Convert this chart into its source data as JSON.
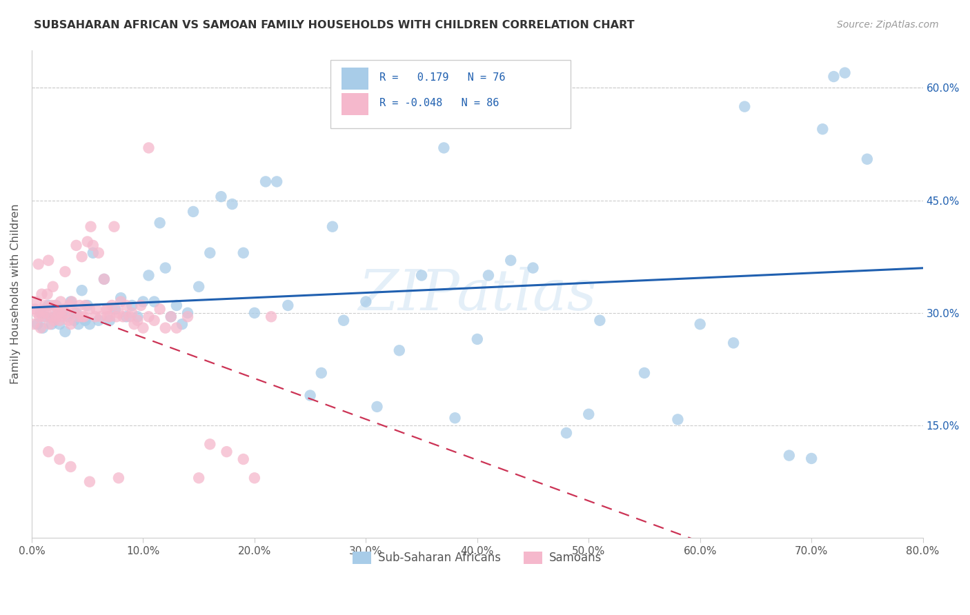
{
  "title": "SUBSAHARAN AFRICAN VS SAMOAN FAMILY HOUSEHOLDS WITH CHILDREN CORRELATION CHART",
  "source": "Source: ZipAtlas.com",
  "ylabel": "Family Households with Children",
  "xlim": [
    0.0,
    0.8
  ],
  "ylim": [
    0.0,
    0.65
  ],
  "ytick_values": [
    0.15,
    0.3,
    0.45,
    0.6
  ],
  "xtick_values": [
    0.0,
    0.1,
    0.2,
    0.3,
    0.4,
    0.5,
    0.6,
    0.7,
    0.8
  ],
  "legend_label1": "Sub-Saharan Africans",
  "legend_label2": "Samoans",
  "watermark": "ZIPatlas",
  "blue_scatter_color": "#a8cce8",
  "pink_scatter_color": "#f5b8cc",
  "blue_line_color": "#2060b0",
  "pink_line_color": "#cc3355",
  "background_color": "#ffffff",
  "blue_x": [
    0.005,
    0.008,
    0.01,
    0.012,
    0.015,
    0.018,
    0.02,
    0.022,
    0.025,
    0.027,
    0.03,
    0.032,
    0.035,
    0.038,
    0.04,
    0.042,
    0.045,
    0.048,
    0.05,
    0.052,
    0.055,
    0.06,
    0.065,
    0.07,
    0.075,
    0.08,
    0.085,
    0.09,
    0.095,
    0.1,
    0.105,
    0.11,
    0.115,
    0.12,
    0.125,
    0.13,
    0.135,
    0.14,
    0.145,
    0.15,
    0.16,
    0.17,
    0.18,
    0.19,
    0.2,
    0.21,
    0.22,
    0.23,
    0.25,
    0.26,
    0.27,
    0.28,
    0.3,
    0.31,
    0.33,
    0.35,
    0.37,
    0.38,
    0.4,
    0.41,
    0.43,
    0.45,
    0.48,
    0.5,
    0.51,
    0.55,
    0.58,
    0.6,
    0.63,
    0.68,
    0.7,
    0.71,
    0.73,
    0.75,
    0.72,
    0.64
  ],
  "blue_y": [
    0.285,
    0.3,
    0.28,
    0.295,
    0.31,
    0.285,
    0.295,
    0.31,
    0.285,
    0.3,
    0.275,
    0.295,
    0.315,
    0.29,
    0.3,
    0.285,
    0.33,
    0.29,
    0.31,
    0.285,
    0.38,
    0.29,
    0.345,
    0.29,
    0.305,
    0.32,
    0.295,
    0.31,
    0.295,
    0.315,
    0.35,
    0.315,
    0.42,
    0.36,
    0.295,
    0.31,
    0.285,
    0.3,
    0.435,
    0.335,
    0.38,
    0.455,
    0.445,
    0.38,
    0.3,
    0.475,
    0.475,
    0.31,
    0.19,
    0.22,
    0.415,
    0.29,
    0.315,
    0.175,
    0.25,
    0.35,
    0.52,
    0.16,
    0.265,
    0.35,
    0.37,
    0.36,
    0.14,
    0.165,
    0.29,
    0.22,
    0.158,
    0.285,
    0.26,
    0.11,
    0.106,
    0.545,
    0.62,
    0.505,
    0.615,
    0.575
  ],
  "pink_x": [
    0.002,
    0.003,
    0.004,
    0.005,
    0.006,
    0.007,
    0.008,
    0.009,
    0.01,
    0.011,
    0.012,
    0.013,
    0.014,
    0.015,
    0.016,
    0.017,
    0.018,
    0.019,
    0.02,
    0.021,
    0.022,
    0.023,
    0.024,
    0.025,
    0.026,
    0.027,
    0.028,
    0.03,
    0.031,
    0.033,
    0.034,
    0.035,
    0.036,
    0.038,
    0.04,
    0.042,
    0.043,
    0.045,
    0.047,
    0.048,
    0.05,
    0.052,
    0.053,
    0.055,
    0.057,
    0.058,
    0.06,
    0.062,
    0.065,
    0.067,
    0.068,
    0.07,
    0.072,
    0.074,
    0.076,
    0.078,
    0.08,
    0.082,
    0.085,
    0.088,
    0.09,
    0.092,
    0.095,
    0.098,
    0.1,
    0.105,
    0.11,
    0.115,
    0.12,
    0.125,
    0.13,
    0.14,
    0.15,
    0.16,
    0.175,
    0.19,
    0.2,
    0.215,
    0.105,
    0.068,
    0.045,
    0.025,
    0.015,
    0.078,
    0.052,
    0.035
  ],
  "pink_y": [
    0.285,
    0.305,
    0.315,
    0.3,
    0.365,
    0.295,
    0.28,
    0.325,
    0.295,
    0.305,
    0.31,
    0.3,
    0.325,
    0.37,
    0.285,
    0.295,
    0.31,
    0.335,
    0.29,
    0.31,
    0.295,
    0.305,
    0.3,
    0.29,
    0.315,
    0.295,
    0.305,
    0.355,
    0.3,
    0.29,
    0.31,
    0.285,
    0.315,
    0.3,
    0.39,
    0.295,
    0.31,
    0.375,
    0.295,
    0.31,
    0.395,
    0.305,
    0.415,
    0.39,
    0.295,
    0.305,
    0.38,
    0.295,
    0.345,
    0.305,
    0.305,
    0.295,
    0.31,
    0.415,
    0.295,
    0.3,
    0.315,
    0.295,
    0.31,
    0.295,
    0.3,
    0.285,
    0.29,
    0.31,
    0.28,
    0.295,
    0.29,
    0.305,
    0.28,
    0.295,
    0.28,
    0.295,
    0.08,
    0.125,
    0.115,
    0.105,
    0.08,
    0.295,
    0.52,
    0.295,
    0.295,
    0.105,
    0.115,
    0.08,
    0.075,
    0.095
  ]
}
